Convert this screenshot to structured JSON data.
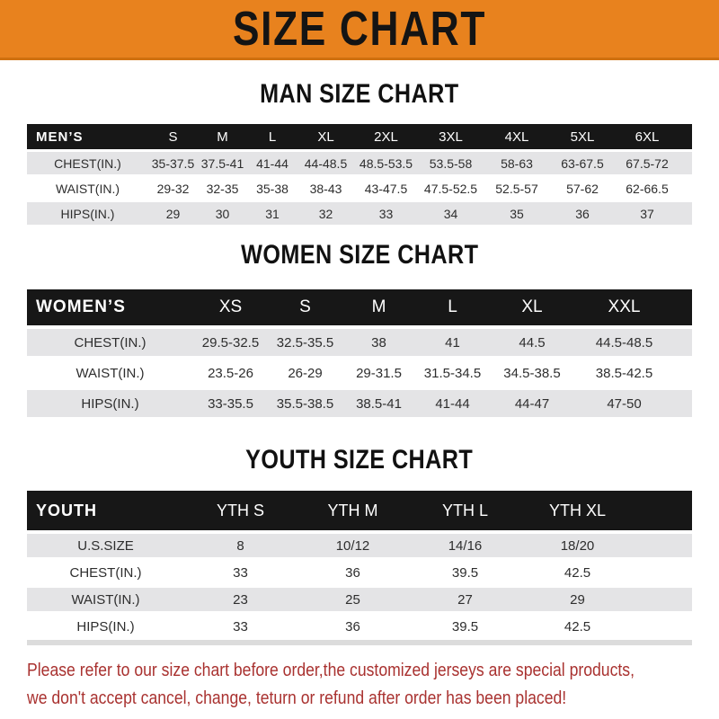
{
  "banner": {
    "title": "SIZE CHART"
  },
  "colors": {
    "banner_orange": "#e8821e",
    "banner_edge": "#cf700f",
    "header_black": "#171717",
    "row_gray": "#e4e4e6",
    "note_red": "#a93230"
  },
  "chart_data": [
    {
      "type": "table",
      "title": "MAN SIZE CHART",
      "columns": [
        "MEN’S",
        "S",
        "M",
        "L",
        "XL",
        "2XL",
        "3XL",
        "4XL",
        "5XL",
        "6XL"
      ],
      "rows": [
        [
          "CHEST(IN.)",
          "35-37.5",
          "37.5-41",
          "41-44",
          "44-48.5",
          "48.5-53.5",
          "53.5-58",
          "58-63",
          "63-67.5",
          "67.5-72"
        ],
        [
          "WAIST(IN.)",
          "29-32",
          "32-35",
          "35-38",
          "38-43",
          "43-47.5",
          "47.5-52.5",
          "52.5-57",
          "57-62",
          "62-66.5"
        ],
        [
          "HIPS(IN.)",
          "29",
          "30",
          "31",
          "32",
          "33",
          "34",
          "35",
          "36",
          "37"
        ]
      ]
    },
    {
      "type": "table",
      "title": "WOMEN SIZE CHART",
      "columns": [
        "WOMEN’S",
        "XS",
        "S",
        "M",
        "L",
        "XL",
        "XXL"
      ],
      "rows": [
        [
          "CHEST(IN.)",
          "29.5-32.5",
          "32.5-35.5",
          "38",
          "41",
          "44.5",
          "44.5-48.5"
        ],
        [
          "WAIST(IN.)",
          "23.5-26",
          "26-29",
          "29-31.5",
          "31.5-34.5",
          "34.5-38.5",
          "38.5-42.5"
        ],
        [
          "HIPS(IN.)",
          "33-35.5",
          "35.5-38.5",
          "38.5-41",
          "41-44",
          "44-47",
          "47-50"
        ]
      ]
    },
    {
      "type": "table",
      "title": "YOUTH SIZE CHART",
      "columns": [
        "YOUTH",
        "YTH S",
        "YTH M",
        "YTH L",
        "YTH XL"
      ],
      "rows": [
        [
          "U.S.SIZE",
          "8",
          "10/12",
          "14/16",
          "18/20"
        ],
        [
          "CHEST(IN.)",
          "33",
          "36",
          "39.5",
          "42.5"
        ],
        [
          "WAIST(IN.)",
          "23",
          "25",
          "27",
          "29"
        ],
        [
          "HIPS(IN.)",
          "33",
          "36",
          "39.5",
          "42.5"
        ]
      ]
    }
  ],
  "note": {
    "line1": "Please refer to our size chart before order,the customized jerseys are special products,",
    "line2": "we don't accept cancel, change, teturn or refund after order has been placed!"
  }
}
